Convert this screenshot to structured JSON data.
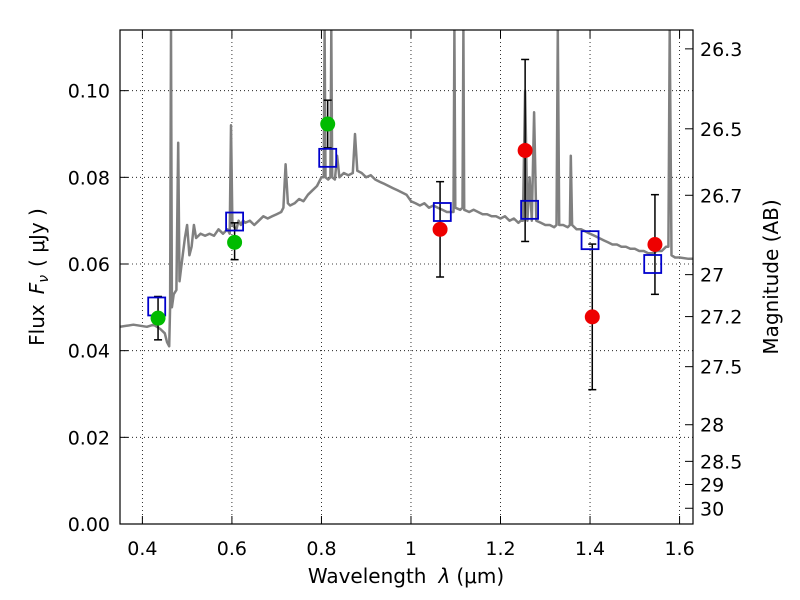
{
  "chart_data": {
    "type": "scatter",
    "xlabel_text": "Wavelength",
    "xlabel_symbol": "λ",
    "xlabel_unit": "(μm)",
    "ylabel_text": "Flux",
    "ylabel_symbol": "F",
    "ylabel_sub": "ν",
    "ylabel_unit": "( μJy )",
    "y2label": "Magnitude (AB)",
    "xlim": [
      0.35,
      1.63
    ],
    "ylim": [
      0.0,
      0.114
    ],
    "x_ticks": [
      0.4,
      0.6,
      0.8,
      1.0,
      1.2,
      1.4,
      1.6
    ],
    "x_tick_labels": [
      "0.4",
      "0.6",
      "0.8",
      "1",
      "1.2",
      "1.4",
      "1.6"
    ],
    "y_ticks": [
      0.0,
      0.02,
      0.04,
      0.06,
      0.08,
      0.1
    ],
    "y_tick_labels": [
      "0.00",
      "0.02",
      "0.04",
      "0.06",
      "0.08",
      "0.10"
    ],
    "mag_ticks": [
      26.3,
      26.5,
      26.7,
      27,
      27.2,
      27.5,
      28,
      28.5,
      29,
      30
    ],
    "mag_tick_labels": [
      "26.3",
      "26.5",
      "26.7",
      "27",
      "27.2",
      "27.5",
      "28",
      "28.5",
      "29",
      "30"
    ],
    "grid": true,
    "colors": {
      "green_points": "#00bb00",
      "red_points": "#ee0000",
      "model_boxes": "#0000cc",
      "sed_line": "#808080",
      "error_bars": "#000000"
    },
    "series": [
      {
        "name": "observed-green",
        "points": [
          {
            "x": 0.435,
            "y": 0.0475,
            "err_lo": 0.005,
            "err_hi": 0.005
          },
          {
            "x": 0.606,
            "y": 0.065,
            "err_lo": 0.004,
            "err_hi": 0.0045
          },
          {
            "x": 0.814,
            "y": 0.0923,
            "err_lo": 0.0055,
            "err_hi": 0.0055
          }
        ]
      },
      {
        "name": "observed-red",
        "points": [
          {
            "x": 1.065,
            "y": 0.068,
            "err_lo": 0.011,
            "err_hi": 0.011
          },
          {
            "x": 1.255,
            "y": 0.0862,
            "err_lo": 0.021,
            "err_hi": 0.021
          },
          {
            "x": 1.405,
            "y": 0.0478,
            "err_lo": 0.0168,
            "err_hi": 0.0168
          },
          {
            "x": 1.545,
            "y": 0.0645,
            "err_lo": 0.0115,
            "err_hi": 0.0115
          }
        ]
      },
      {
        "name": "model-bandpass",
        "points": [
          {
            "x": 0.432,
            "y": 0.0502
          },
          {
            "x": 0.606,
            "y": 0.0698
          },
          {
            "x": 0.814,
            "y": 0.0845
          },
          {
            "x": 1.07,
            "y": 0.072
          },
          {
            "x": 1.265,
            "y": 0.0725
          },
          {
            "x": 1.4,
            "y": 0.0655
          },
          {
            "x": 1.54,
            "y": 0.06
          }
        ]
      },
      {
        "name": "sed-model",
        "points": [
          [
            0.35,
            0.0455
          ],
          [
            0.38,
            0.046
          ],
          [
            0.41,
            0.0455
          ],
          [
            0.425,
            0.046
          ],
          [
            0.44,
            0.045
          ],
          [
            0.45,
            0.044
          ],
          [
            0.455,
            0.042
          ],
          [
            0.46,
            0.041
          ],
          [
            0.462,
            0.05
          ],
          [
            0.464,
            0.114
          ],
          [
            0.466,
            0.05
          ],
          [
            0.47,
            0.053
          ],
          [
            0.476,
            0.054
          ],
          [
            0.48,
            0.088
          ],
          [
            0.483,
            0.056
          ],
          [
            0.49,
            0.062
          ],
          [
            0.495,
            0.066
          ],
          [
            0.5,
            0.069
          ],
          [
            0.505,
            0.062
          ],
          [
            0.51,
            0.064
          ],
          [
            0.515,
            0.069
          ],
          [
            0.52,
            0.066
          ],
          [
            0.53,
            0.067
          ],
          [
            0.54,
            0.0665
          ],
          [
            0.55,
            0.067
          ],
          [
            0.56,
            0.0665
          ],
          [
            0.57,
            0.068
          ],
          [
            0.58,
            0.067
          ],
          [
            0.59,
            0.068
          ],
          [
            0.595,
            0.067
          ],
          [
            0.598,
            0.092
          ],
          [
            0.601,
            0.069
          ],
          [
            0.61,
            0.068
          ],
          [
            0.615,
            0.07
          ],
          [
            0.62,
            0.069
          ],
          [
            0.625,
            0.07
          ],
          [
            0.63,
            0.0695
          ],
          [
            0.64,
            0.07
          ],
          [
            0.65,
            0.069
          ],
          [
            0.66,
            0.07
          ],
          [
            0.67,
            0.071
          ],
          [
            0.68,
            0.0705
          ],
          [
            0.69,
            0.071
          ],
          [
            0.7,
            0.0715
          ],
          [
            0.71,
            0.072
          ],
          [
            0.715,
            0.073
          ],
          [
            0.72,
            0.083
          ],
          [
            0.725,
            0.074
          ],
          [
            0.73,
            0.0735
          ],
          [
            0.74,
            0.074
          ],
          [
            0.75,
            0.075
          ],
          [
            0.76,
            0.0745
          ],
          [
            0.77,
            0.076
          ],
          [
            0.78,
            0.077
          ],
          [
            0.79,
            0.078
          ],
          [
            0.8,
            0.08
          ],
          [
            0.805,
            0.08
          ],
          [
            0.807,
            0.114
          ],
          [
            0.809,
            0.08
          ],
          [
            0.815,
            0.0795
          ],
          [
            0.82,
            0.08
          ],
          [
            0.822,
            0.114
          ],
          [
            0.824,
            0.08
          ],
          [
            0.83,
            0.0795
          ],
          [
            0.835,
            0.085
          ],
          [
            0.84,
            0.08
          ],
          [
            0.85,
            0.081
          ],
          [
            0.86,
            0.0805
          ],
          [
            0.87,
            0.081
          ],
          [
            0.875,
            0.09
          ],
          [
            0.88,
            0.0815
          ],
          [
            0.89,
            0.081
          ],
          [
            0.9,
            0.08
          ],
          [
            0.91,
            0.0805
          ],
          [
            0.92,
            0.0795
          ],
          [
            0.93,
            0.079
          ],
          [
            0.94,
            0.0785
          ],
          [
            0.95,
            0.078
          ],
          [
            0.96,
            0.0775
          ],
          [
            0.97,
            0.077
          ],
          [
            0.98,
            0.0765
          ],
          [
            0.99,
            0.076
          ],
          [
            1.0,
            0.0745
          ],
          [
            1.01,
            0.074
          ],
          [
            1.02,
            0.0735
          ],
          [
            1.03,
            0.074
          ],
          [
            1.04,
            0.073
          ],
          [
            1.05,
            0.0735
          ],
          [
            1.06,
            0.073
          ],
          [
            1.07,
            0.0725
          ],
          [
            1.08,
            0.072
          ],
          [
            1.09,
            0.072
          ],
          [
            1.095,
            0.072
          ],
          [
            1.097,
            0.114
          ],
          [
            1.099,
            0.073
          ],
          [
            1.11,
            0.0725
          ],
          [
            1.115,
            0.073
          ],
          [
            1.117,
            0.114
          ],
          [
            1.119,
            0.0725
          ],
          [
            1.13,
            0.072
          ],
          [
            1.14,
            0.0725
          ],
          [
            1.15,
            0.072
          ],
          [
            1.16,
            0.0715
          ],
          [
            1.17,
            0.0715
          ],
          [
            1.18,
            0.071
          ],
          [
            1.19,
            0.071
          ],
          [
            1.2,
            0.0705
          ],
          [
            1.21,
            0.071
          ],
          [
            1.22,
            0.07
          ],
          [
            1.23,
            0.0705
          ],
          [
            1.24,
            0.0695
          ],
          [
            1.245,
            0.07
          ],
          [
            1.25,
            0.07
          ],
          [
            1.255,
            0.1
          ],
          [
            1.26,
            0.07
          ],
          [
            1.265,
            0.08
          ],
          [
            1.27,
            0.07
          ],
          [
            1.275,
            0.095
          ],
          [
            1.28,
            0.07
          ],
          [
            1.29,
            0.0695
          ],
          [
            1.3,
            0.069
          ],
          [
            1.31,
            0.069
          ],
          [
            1.32,
            0.0685
          ],
          [
            1.325,
            0.069
          ],
          [
            1.328,
            0.114
          ],
          [
            1.331,
            0.069
          ],
          [
            1.34,
            0.069
          ],
          [
            1.35,
            0.0685
          ],
          [
            1.355,
            0.069
          ],
          [
            1.357,
            0.085
          ],
          [
            1.36,
            0.069
          ],
          [
            1.37,
            0.068
          ],
          [
            1.38,
            0.068
          ],
          [
            1.39,
            0.0675
          ],
          [
            1.4,
            0.067
          ],
          [
            1.41,
            0.0665
          ],
          [
            1.42,
            0.066
          ],
          [
            1.43,
            0.0655
          ],
          [
            1.44,
            0.065
          ],
          [
            1.45,
            0.0645
          ],
          [
            1.46,
            0.0645
          ],
          [
            1.47,
            0.064
          ],
          [
            1.48,
            0.064
          ],
          [
            1.49,
            0.0635
          ],
          [
            1.5,
            0.0635
          ],
          [
            1.51,
            0.063
          ],
          [
            1.52,
            0.063
          ],
          [
            1.53,
            0.0625
          ],
          [
            1.54,
            0.0625
          ],
          [
            1.55,
            0.063
          ],
          [
            1.56,
            0.063
          ],
          [
            1.57,
            0.064
          ],
          [
            1.575,
            0.064
          ],
          [
            1.578,
            0.114
          ],
          [
            1.582,
            0.062
          ],
          [
            1.59,
            0.0615
          ],
          [
            1.6,
            0.0615
          ],
          [
            1.62,
            0.0612
          ],
          [
            1.63,
            0.0612
          ]
        ]
      }
    ]
  }
}
